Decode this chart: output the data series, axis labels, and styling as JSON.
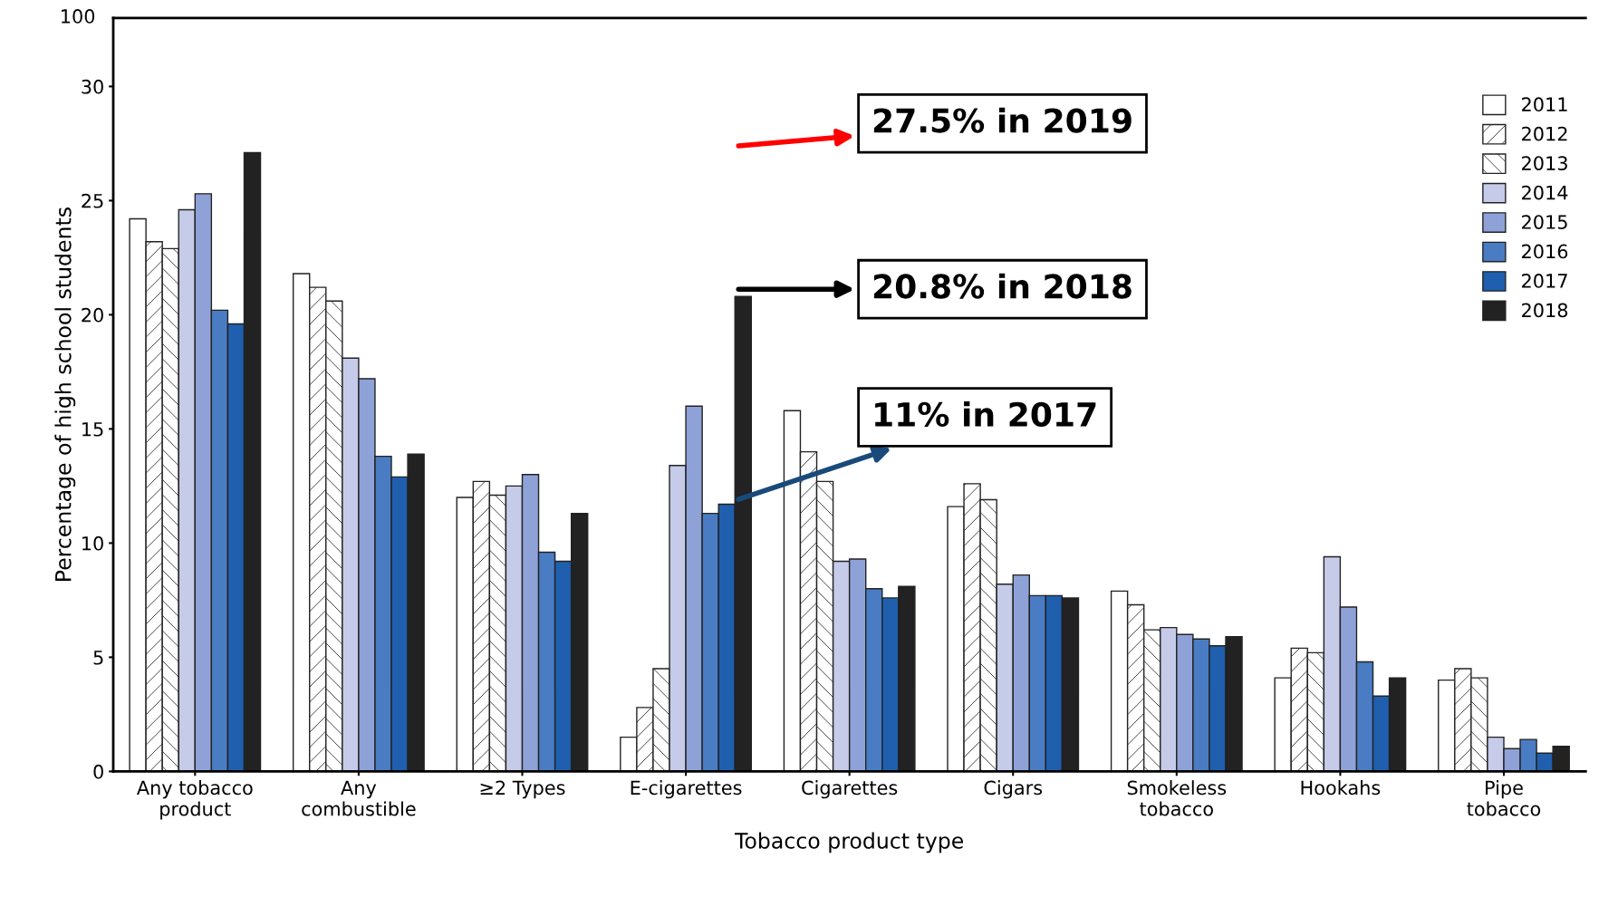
{
  "chart_data": {
    "type": "bar",
    "categories": [
      "Any tobacco\nproduct",
      "Any\ncombustible",
      "≥2 Types",
      "E-cigarettes",
      "Cigarettes",
      "Cigars",
      "Smokeless\ntobacco",
      "Hookahs",
      "Pipe\ntobacco"
    ],
    "xlabel": "Tobacco product type",
    "ylabel": "Percentage of high school students",
    "ylim": [
      0,
      33
    ],
    "yticks": [
      0,
      5,
      10,
      15,
      20,
      25,
      30
    ],
    "grid": false,
    "legend": "top right",
    "series": [
      {
        "name": "2011",
        "color": "#ffffff",
        "values": [
          24.2,
          21.8,
          12.0,
          1.5,
          15.8,
          11.6,
          7.9,
          4.1,
          4.0
        ]
      },
      {
        "name": "2012",
        "color": "#ffffff",
        "values": [
          23.2,
          21.2,
          12.7,
          2.8,
          14.0,
          12.6,
          7.3,
          5.4,
          4.5
        ]
      },
      {
        "name": "2013",
        "color": "#ffffff",
        "values": [
          22.9,
          20.6,
          12.1,
          4.5,
          12.7,
          11.9,
          6.2,
          5.2,
          4.1
        ]
      },
      {
        "name": "2014",
        "color": "#c5cbe8",
        "values": [
          24.6,
          18.1,
          12.5,
          13.4,
          9.2,
          8.2,
          6.3,
          9.4,
          1.5
        ]
      },
      {
        "name": "2015",
        "color": "#8ea2d8",
        "values": [
          25.3,
          17.2,
          13.0,
          16.0,
          9.3,
          8.6,
          6.0,
          7.2,
          1.0
        ]
      },
      {
        "name": "2016",
        "color": "#4a7cc4",
        "values": [
          20.2,
          13.8,
          9.6,
          11.3,
          8.0,
          7.7,
          5.8,
          4.8,
          1.4
        ]
      },
      {
        "name": "2017",
        "color": "#1f5fae",
        "values": [
          19.6,
          12.9,
          9.2,
          11.7,
          7.6,
          7.7,
          5.5,
          3.3,
          0.8
        ]
      },
      {
        "name": "2018",
        "color": "#222222",
        "values": [
          27.1,
          13.9,
          11.3,
          20.8,
          8.1,
          7.6,
          5.9,
          4.1,
          1.1
        ]
      }
    ],
    "annotations": [
      "100",
      "27.5% in 2019",
      "20.8% in 2018",
      "11% in 2017"
    ]
  }
}
